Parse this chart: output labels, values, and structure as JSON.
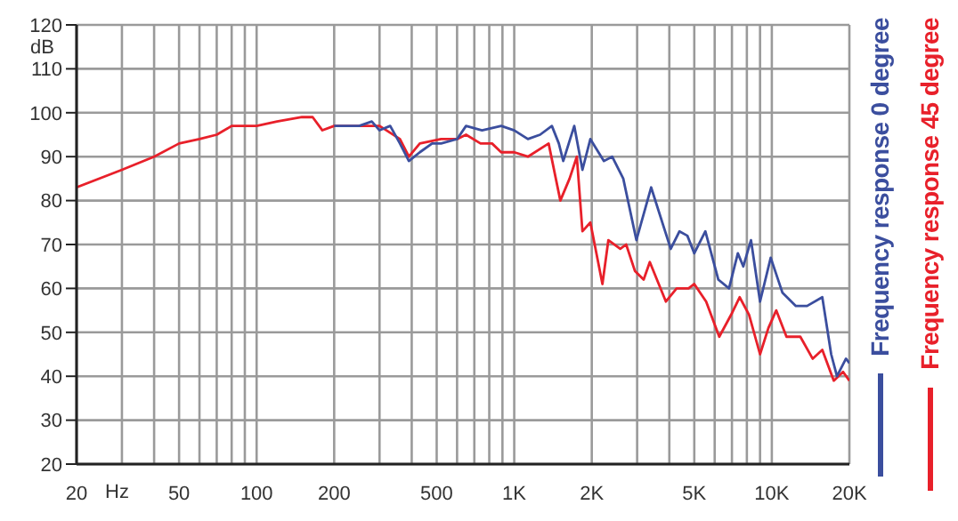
{
  "chart_data": {
    "type": "line",
    "xlabel": "Hz",
    "ylabel": "dB",
    "log": "x",
    "grid": true,
    "legend": "right",
    "marker": "none",
    "line_style": "solid",
    "xlim": [
      20,
      20000
    ],
    "ylim": [
      20,
      120
    ],
    "xticks": [
      20,
      {
        "value": 30,
        "label": null
      },
      {
        "value": 40,
        "label": null
      },
      50,
      {
        "value": 60,
        "label": null
      },
      {
        "value": 70,
        "label": null
      },
      {
        "value": 80,
        "label": null
      },
      {
        "value": 90,
        "label": null
      },
      100,
      200,
      {
        "value": 300,
        "label": null
      },
      {
        "value": 400,
        "label": null
      },
      500,
      {
        "value": 600,
        "label": null
      },
      {
        "value": 700,
        "label": null
      },
      {
        "value": 800,
        "label": null
      },
      {
        "value": 900,
        "label": null
      },
      {
        "value": 1000,
        "label": "1K"
      },
      {
        "value": 2000,
        "label": "2K"
      },
      {
        "value": 3000,
        "label": null
      },
      {
        "value": 4000,
        "label": null
      },
      {
        "value": 5000,
        "label": "5K"
      },
      {
        "value": 6000,
        "label": null
      },
      {
        "value": 7000,
        "label": null
      },
      {
        "value": 8000,
        "label": null
      },
      {
        "value": 9000,
        "label": null
      },
      {
        "value": 10000,
        "label": "10K"
      },
      {
        "value": 20000,
        "label": "20K"
      }
    ],
    "yticks": [
      20,
      30,
      40,
      50,
      60,
      70,
      80,
      90,
      100,
      110,
      120
    ],
    "series": [
      {
        "name": "Frequency response 0 degree",
        "color": "#3b4e9e",
        "x": [
          200,
          250,
          280,
          300,
          330,
          360,
          390,
          430,
          480,
          520,
          600,
          650,
          750,
          890,
          1000,
          1130,
          1260,
          1400,
          1490,
          1550,
          1710,
          1840,
          1975,
          2230,
          2400,
          2650,
          2980,
          3400,
          4050,
          4380,
          4700,
          5000,
          5520,
          6200,
          6820,
          7380,
          7750,
          8300,
          9000,
          9900,
          11000,
          12400,
          13700,
          15700,
          17000,
          17900,
          19400,
          20000
        ],
        "values": [
          97,
          97,
          98,
          96,
          97,
          93,
          89,
          91,
          93,
          93,
          94,
          97,
          96,
          97,
          96,
          94,
          95,
          97,
          93,
          89,
          97,
          87,
          94,
          89,
          90,
          85,
          71,
          83,
          69,
          73,
          72,
          68,
          73,
          62,
          60,
          68,
          65,
          71,
          57,
          67,
          59,
          56,
          56,
          58,
          45,
          40,
          44,
          43
        ]
      },
      {
        "name": "Frequency response 45 degree",
        "color": "#e8202a",
        "x": [
          20,
          30,
          40,
          50,
          60,
          70,
          80,
          90,
          100,
          120,
          150,
          165,
          180,
          200,
          250,
          280,
          300,
          360,
          390,
          430,
          520,
          600,
          650,
          740,
          820,
          890,
          950,
          1000,
          1130,
          1360,
          1510,
          1640,
          1750,
          1840,
          1975,
          2200,
          2320,
          2580,
          2720,
          2940,
          3180,
          3360,
          3640,
          3880,
          4270,
          4750,
          5000,
          5560,
          6250,
          6950,
          7500,
          8160,
          9000,
          9700,
          10400,
          11400,
          12900,
          14400,
          15700,
          17400,
          18900,
          20000
        ],
        "values": [
          83,
          87,
          90,
          93,
          94,
          95,
          97,
          97,
          97,
          98,
          99,
          99,
          96,
          97,
          97,
          97,
          97,
          94,
          90,
          93,
          94,
          94,
          95,
          93,
          93,
          91,
          91,
          91,
          90,
          93,
          80,
          85,
          90,
          73,
          75,
          61,
          71,
          69,
          70,
          64,
          62,
          66,
          61,
          57,
          60,
          60,
          61,
          57,
          49,
          54,
          58,
          54,
          45,
          51,
          55,
          49,
          49,
          44,
          46,
          39,
          41,
          39
        ]
      }
    ]
  }
}
